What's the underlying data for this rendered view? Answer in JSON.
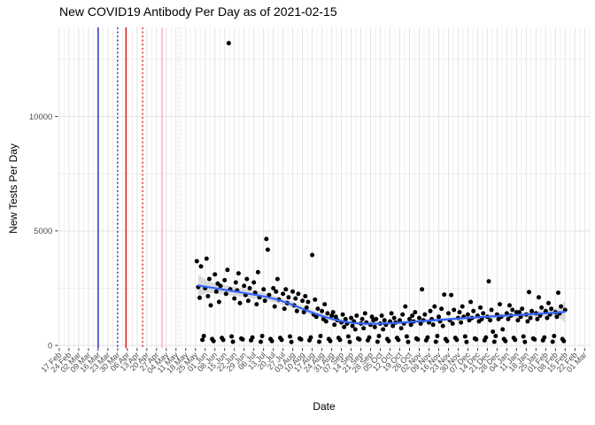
{
  "chart_data": {
    "type": "scatter",
    "title": "New COVID19 Antibody Per Day as of 2021-02-15",
    "xlabel": "Date",
    "ylabel": "New Tests Per Day",
    "x_domain": [
      "2020-02-17",
      "2021-03-01"
    ],
    "ylim": [
      0,
      13900
    ],
    "y_ticks": [
      0,
      5000,
      10000
    ],
    "y_minor_ticks": [
      2500,
      7500,
      12500
    ],
    "x_tick_labels": [
      "17 Feb",
      "24 Feb",
      "02 Mar",
      "09 Mar",
      "16 Mar",
      "23 Mar",
      "30 Mar",
      "06 Apr",
      "13 Apr",
      "20 Apr",
      "27 Apr",
      "04 May",
      "11 May",
      "18 May",
      "25 May",
      "01 Jun",
      "08 Jun",
      "15 Jun",
      "22 Jun",
      "29 Jun",
      "06 Jul",
      "13 Jul",
      "20 Jul",
      "27 Jul",
      "03 Aug",
      "10 Aug",
      "17 Aug",
      "24 Aug",
      "31 Aug",
      "07 Sep",
      "14 Sep",
      "21 Sep",
      "28 Sep",
      "05 Oct",
      "12 Oct",
      "19 Oct",
      "26 Oct",
      "02 Nov",
      "09 Nov",
      "16 Nov",
      "23 Nov",
      "30 Nov",
      "07 Dec",
      "14 Dec",
      "21 Dec",
      "28 Dec",
      "04 Jan",
      "11 Jan",
      "18 Jan",
      "25 Jan",
      "01 Feb",
      "08 Feb",
      "15 Feb",
      "22 Feb",
      "01 Mar"
    ],
    "grid": true,
    "legend": "none",
    "style": {
      "point_color": "#000000",
      "smooth_color": "#3366FF",
      "ribbon_color": "#c9c9c9",
      "grid_major_color": "#e3e3e3",
      "grid_minor_color": "#f0f0f0",
      "tick_color": "#333333",
      "tick_label_color": "#4d4d4d"
    },
    "vlines": [
      {
        "date": "2020-03-16",
        "color": "#2020cc",
        "style": "solid"
      },
      {
        "date": "2020-03-30",
        "color": "#2020cc",
        "style": "dotted"
      },
      {
        "date": "2020-04-05",
        "color": "#e01515",
        "style": "solid"
      },
      {
        "date": "2020-04-17",
        "color": "#e01515",
        "style": "dotted"
      },
      {
        "date": "2020-05-01",
        "color": "#ffaebc",
        "style": "solid"
      },
      {
        "date": "2020-05-13",
        "color": "#ffd6de",
        "style": "dotted"
      }
    ],
    "smooth": [
      [
        "2020-05-27",
        2620,
        2150,
        3090
      ],
      [
        "2020-06-03",
        2550,
        2300,
        2800
      ],
      [
        "2020-06-10",
        2480,
        2260,
        2700
      ],
      [
        "2020-06-17",
        2410,
        2210,
        2610
      ],
      [
        "2020-06-24",
        2340,
        2150,
        2530
      ],
      [
        "2020-07-01",
        2270,
        2090,
        2450
      ],
      [
        "2020-07-08",
        2200,
        2030,
        2370
      ],
      [
        "2020-07-15",
        2120,
        1960,
        2280
      ],
      [
        "2020-07-22",
        2010,
        1860,
        2160
      ],
      [
        "2020-07-29",
        1880,
        1740,
        2020
      ],
      [
        "2020-08-05",
        1720,
        1590,
        1850
      ],
      [
        "2020-08-12",
        1550,
        1430,
        1670
      ],
      [
        "2020-08-19",
        1390,
        1280,
        1500
      ],
      [
        "2020-08-26",
        1250,
        1150,
        1350
      ],
      [
        "2020-09-02",
        1130,
        1040,
        1220
      ],
      [
        "2020-09-09",
        1040,
        950,
        1130
      ],
      [
        "2020-09-16",
        980,
        890,
        1070
      ],
      [
        "2020-09-23",
        950,
        860,
        1040
      ],
      [
        "2020-09-30",
        945,
        860,
        1030
      ],
      [
        "2020-10-07",
        955,
        870,
        1040
      ],
      [
        "2020-10-14",
        975,
        890,
        1060
      ],
      [
        "2020-10-21",
        1000,
        915,
        1085
      ],
      [
        "2020-10-28",
        1030,
        945,
        1115
      ],
      [
        "2020-11-04",
        1060,
        975,
        1145
      ],
      [
        "2020-11-11",
        1090,
        1005,
        1175
      ],
      [
        "2020-11-18",
        1120,
        1035,
        1205
      ],
      [
        "2020-11-25",
        1150,
        1065,
        1235
      ],
      [
        "2020-12-02",
        1180,
        1090,
        1270
      ],
      [
        "2020-12-09",
        1210,
        1120,
        1300
      ],
      [
        "2020-12-16",
        1235,
        1140,
        1330
      ],
      [
        "2020-12-23",
        1260,
        1160,
        1360
      ],
      [
        "2020-12-30",
        1285,
        1180,
        1390
      ],
      [
        "2021-01-06",
        1310,
        1200,
        1420
      ],
      [
        "2021-01-13",
        1335,
        1220,
        1450
      ],
      [
        "2021-01-20",
        1360,
        1240,
        1480
      ],
      [
        "2021-01-27",
        1385,
        1255,
        1515
      ],
      [
        "2021-02-03",
        1410,
        1265,
        1555
      ],
      [
        "2021-02-10",
        1440,
        1250,
        1630
      ],
      [
        "2021-02-15",
        1465,
        980,
        1950
      ]
    ],
    "points": [
      [
        "2020-05-26",
        3680
      ],
      [
        "2020-05-27",
        2550
      ],
      [
        "2020-05-28",
        2080
      ],
      [
        "2020-05-29",
        3450
      ],
      [
        "2020-05-30",
        240
      ],
      [
        "2020-05-31",
        410
      ],
      [
        "2020-06-01",
        2500
      ],
      [
        "2020-06-02",
        3790
      ],
      [
        "2020-06-03",
        2150
      ],
      [
        "2020-06-04",
        2900
      ],
      [
        "2020-06-05",
        1750
      ],
      [
        "2020-06-06",
        280
      ],
      [
        "2020-06-07",
        190
      ],
      [
        "2020-06-08",
        3100
      ],
      [
        "2020-06-09",
        2350
      ],
      [
        "2020-06-10",
        2700
      ],
      [
        "2020-06-11",
        1900
      ],
      [
        "2020-06-12",
        2600
      ],
      [
        "2020-06-13",
        330
      ],
      [
        "2020-06-14",
        240
      ],
      [
        "2020-06-15",
        2850
      ],
      [
        "2020-06-16",
        2250
      ],
      [
        "2020-06-17",
        3300
      ],
      [
        "2020-06-18",
        13200
      ],
      [
        "2020-06-19",
        2450
      ],
      [
        "2020-06-20",
        390
      ],
      [
        "2020-06-21",
        160
      ],
      [
        "2020-06-22",
        2050
      ],
      [
        "2020-06-23",
        2750
      ],
      [
        "2020-06-24",
        2400
      ],
      [
        "2020-06-25",
        3150
      ],
      [
        "2020-06-26",
        1850
      ],
      [
        "2020-06-27",
        300
      ],
      [
        "2020-06-28",
        260
      ],
      [
        "2020-06-29",
        2600
      ],
      [
        "2020-06-30",
        2200
      ],
      [
        "2020-07-01",
        2900
      ],
      [
        "2020-07-02",
        1950
      ],
      [
        "2020-07-03",
        2500
      ],
      [
        "2020-07-04",
        220
      ],
      [
        "2020-07-05",
        350
      ],
      [
        "2020-07-06",
        2750
      ],
      [
        "2020-07-07",
        2300
      ],
      [
        "2020-07-08",
        1800
      ],
      [
        "2020-07-09",
        3200
      ],
      [
        "2020-07-10",
        2100
      ],
      [
        "2020-07-11",
        160
      ],
      [
        "2020-07-12",
        410
      ],
      [
        "2020-07-13",
        2450
      ],
      [
        "2020-07-14",
        1950
      ],
      [
        "2020-07-15",
        4650
      ],
      [
        "2020-07-16",
        4180
      ],
      [
        "2020-07-17",
        2200
      ],
      [
        "2020-07-18",
        280
      ],
      [
        "2020-07-19",
        190
      ],
      [
        "2020-07-20",
        2500
      ],
      [
        "2020-07-21",
        1700
      ],
      [
        "2020-07-22",
        2350
      ],
      [
        "2020-07-23",
        2900
      ],
      [
        "2020-07-24",
        2000
      ],
      [
        "2020-07-25",
        330
      ],
      [
        "2020-07-26",
        240
      ],
      [
        "2020-07-27",
        2250
      ],
      [
        "2020-07-28",
        1600
      ],
      [
        "2020-07-29",
        2450
      ],
      [
        "2020-07-30",
        1850
      ],
      [
        "2020-07-31",
        2100
      ],
      [
        "2020-08-01",
        390
      ],
      [
        "2020-08-02",
        150
      ],
      [
        "2020-08-03",
        2350
      ],
      [
        "2020-08-04",
        1750
      ],
      [
        "2020-08-05",
        2050
      ],
      [
        "2020-08-06",
        1500
      ],
      [
        "2020-08-07",
        2250
      ],
      [
        "2020-08-08",
        300
      ],
      [
        "2020-08-09",
        260
      ],
      [
        "2020-08-10",
        1950
      ],
      [
        "2020-08-11",
        1450
      ],
      [
        "2020-08-12",
        2150
      ],
      [
        "2020-08-13",
        1650
      ],
      [
        "2020-08-14",
        1900
      ],
      [
        "2020-08-15",
        220
      ],
      [
        "2020-08-16",
        350
      ],
      [
        "2020-08-17",
        3950
      ],
      [
        "2020-08-18",
        1350
      ],
      [
        "2020-08-19",
        2000
      ],
      [
        "2020-08-20",
        1250
      ],
      [
        "2020-08-21",
        1600
      ],
      [
        "2020-08-22",
        160
      ],
      [
        "2020-08-23",
        410
      ],
      [
        "2020-08-24",
        1500
      ],
      [
        "2020-08-25",
        1150
      ],
      [
        "2020-08-26",
        1800
      ],
      [
        "2020-08-27",
        1050
      ],
      [
        "2020-08-28",
        1400
      ],
      [
        "2020-08-29",
        280
      ],
      [
        "2020-08-30",
        190
      ],
      [
        "2020-08-31",
        1300
      ],
      [
        "2020-09-01",
        1450
      ],
      [
        "2020-09-02",
        900
      ],
      [
        "2020-09-03",
        1250
      ],
      [
        "2020-09-04",
        1100
      ],
      [
        "2020-09-05",
        330
      ],
      [
        "2020-09-06",
        240
      ],
      [
        "2020-09-07",
        1000
      ],
      [
        "2020-09-08",
        1350
      ],
      [
        "2020-09-09",
        800
      ],
      [
        "2020-09-10",
        1150
      ],
      [
        "2020-09-11",
        950
      ],
      [
        "2020-09-12",
        390
      ],
      [
        "2020-09-13",
        150
      ],
      [
        "2020-09-14",
        1200
      ],
      [
        "2020-09-15",
        850
      ],
      [
        "2020-09-16",
        1050
      ],
      [
        "2020-09-17",
        700
      ],
      [
        "2020-09-18",
        1300
      ],
      [
        "2020-09-19",
        300
      ],
      [
        "2020-09-20",
        260
      ],
      [
        "2020-09-21",
        950
      ],
      [
        "2020-09-22",
        1150
      ],
      [
        "2020-09-23",
        750
      ],
      [
        "2020-09-24",
        1400
      ],
      [
        "2020-09-25",
        1000
      ],
      [
        "2020-09-26",
        220
      ],
      [
        "2020-09-27",
        350
      ],
      [
        "2020-09-28",
        900
      ],
      [
        "2020-09-29",
        1250
      ],
      [
        "2020-09-30",
        1100
      ],
      [
        "2020-10-01",
        800
      ],
      [
        "2020-10-02",
        1150
      ],
      [
        "2020-10-03",
        160
      ],
      [
        "2020-10-04",
        410
      ],
      [
        "2020-10-05",
        950
      ],
      [
        "2020-10-06",
        1300
      ],
      [
        "2020-10-07",
        700
      ],
      [
        "2020-10-08",
        1100
      ],
      [
        "2020-10-09",
        900
      ],
      [
        "2020-10-10",
        280
      ],
      [
        "2020-10-11",
        190
      ],
      [
        "2020-10-12",
        1050
      ],
      [
        "2020-10-13",
        1400
      ],
      [
        "2020-10-14",
        850
      ],
      [
        "2020-10-15",
        1200
      ],
      [
        "2020-10-16",
        1000
      ],
      [
        "2020-10-17",
        330
      ],
      [
        "2020-10-18",
        240
      ],
      [
        "2020-10-19",
        1100
      ],
      [
        "2020-10-20",
        750
      ],
      [
        "2020-10-21",
        1350
      ],
      [
        "2020-10-22",
        950
      ],
      [
        "2020-10-23",
        1700
      ],
      [
        "2020-10-24",
        390
      ],
      [
        "2020-10-25",
        150
      ],
      [
        "2020-10-26",
        1150
      ],
      [
        "2020-10-27",
        900
      ],
      [
        "2020-10-28",
        1300
      ],
      [
        "2020-10-29",
        1050
      ],
      [
        "2020-10-30",
        1450
      ],
      [
        "2020-10-31",
        300
      ],
      [
        "2020-11-01",
        260
      ],
      [
        "2020-11-02",
        1200
      ],
      [
        "2020-11-03",
        950
      ],
      [
        "2020-11-04",
        2450
      ],
      [
        "2020-11-05",
        1100
      ],
      [
        "2020-11-06",
        1350
      ],
      [
        "2020-11-07",
        220
      ],
      [
        "2020-11-08",
        350
      ],
      [
        "2020-11-09",
        1000
      ],
      [
        "2020-11-10",
        1500
      ],
      [
        "2020-11-11",
        1150
      ],
      [
        "2020-11-12",
        900
      ],
      [
        "2020-11-13",
        1700
      ],
      [
        "2020-11-14",
        160
      ],
      [
        "2020-11-15",
        410
      ],
      [
        "2020-11-16",
        1250
      ],
      [
        "2020-11-17",
        1050
      ],
      [
        "2020-11-18",
        1600
      ],
      [
        "2020-11-19",
        850
      ],
      [
        "2020-11-20",
        2220
      ],
      [
        "2020-11-21",
        280
      ],
      [
        "2020-11-22",
        190
      ],
      [
        "2020-11-23",
        1400
      ],
      [
        "2020-11-24",
        1100
      ],
      [
        "2020-11-25",
        2200
      ],
      [
        "2020-11-26",
        950
      ],
      [
        "2020-11-27",
        1550
      ],
      [
        "2020-11-28",
        330
      ],
      [
        "2020-11-29",
        240
      ],
      [
        "2020-11-30",
        1200
      ],
      [
        "2020-12-01",
        1450
      ],
      [
        "2020-12-02",
        1000
      ],
      [
        "2020-12-03",
        1700
      ],
      [
        "2020-12-04",
        1250
      ],
      [
        "2020-12-05",
        390
      ],
      [
        "2020-12-06",
        150
      ],
      [
        "2020-12-07",
        1350
      ],
      [
        "2020-12-08",
        1100
      ],
      [
        "2020-12-09",
        1900
      ],
      [
        "2020-12-10",
        1200
      ],
      [
        "2020-12-11",
        1500
      ],
      [
        "2020-12-12",
        300
      ],
      [
        "2020-12-13",
        260
      ],
      [
        "2020-12-14",
        1300
      ],
      [
        "2020-12-15",
        1050
      ],
      [
        "2020-12-16",
        1650
      ],
      [
        "2020-12-17",
        1150
      ],
      [
        "2020-12-18",
        1400
      ],
      [
        "2020-12-19",
        220
      ],
      [
        "2020-12-20",
        350
      ],
      [
        "2020-12-21",
        1250
      ],
      [
        "2020-12-22",
        2800
      ],
      [
        "2020-12-23",
        1100
      ],
      [
        "2020-12-24",
        1550
      ],
      [
        "2020-12-25",
        600
      ],
      [
        "2020-12-26",
        160
      ],
      [
        "2020-12-27",
        410
      ],
      [
        "2020-12-28",
        1350
      ],
      [
        "2020-12-29",
        1150
      ],
      [
        "2020-12-30",
        1800
      ],
      [
        "2020-12-31",
        1250
      ],
      [
        "2021-01-01",
        700
      ],
      [
        "2021-01-02",
        280
      ],
      [
        "2021-01-03",
        190
      ],
      [
        "2021-01-04",
        1400
      ],
      [
        "2021-01-05",
        1150
      ],
      [
        "2021-01-06",
        1750
      ],
      [
        "2021-01-07",
        1300
      ],
      [
        "2021-01-08",
        1550
      ],
      [
        "2021-01-09",
        330
      ],
      [
        "2021-01-10",
        240
      ],
      [
        "2021-01-11",
        1450
      ],
      [
        "2021-01-12",
        1100
      ],
      [
        "2021-01-13",
        1450
      ],
      [
        "2021-01-14",
        1250
      ],
      [
        "2021-01-15",
        1600
      ],
      [
        "2021-01-16",
        390
      ],
      [
        "2021-01-17",
        150
      ],
      [
        "2021-01-18",
        1350
      ],
      [
        "2021-01-19",
        1050
      ],
      [
        "2021-01-20",
        2330
      ],
      [
        "2021-01-21",
        1200
      ],
      [
        "2021-01-22",
        1500
      ],
      [
        "2021-01-23",
        300
      ],
      [
        "2021-01-24",
        260
      ],
      [
        "2021-01-25",
        1400
      ],
      [
        "2021-01-26",
        1150
      ],
      [
        "2021-01-27",
        2100
      ],
      [
        "2021-01-28",
        1300
      ],
      [
        "2021-01-29",
        1650
      ],
      [
        "2021-01-30",
        220
      ],
      [
        "2021-01-31",
        350
      ],
      [
        "2021-02-01",
        1500
      ],
      [
        "2021-02-02",
        1200
      ],
      [
        "2021-02-03",
        1850
      ],
      [
        "2021-02-04",
        1350
      ],
      [
        "2021-02-05",
        1600
      ],
      [
        "2021-02-06",
        160
      ],
      [
        "2021-02-07",
        410
      ],
      [
        "2021-02-08",
        1450
      ],
      [
        "2021-02-09",
        1250
      ],
      [
        "2021-02-10",
        2300
      ],
      [
        "2021-02-11",
        1400
      ],
      [
        "2021-02-12",
        1700
      ],
      [
        "2021-02-13",
        280
      ],
      [
        "2021-02-14",
        190
      ],
      [
        "2021-02-15",
        1550
      ]
    ]
  }
}
